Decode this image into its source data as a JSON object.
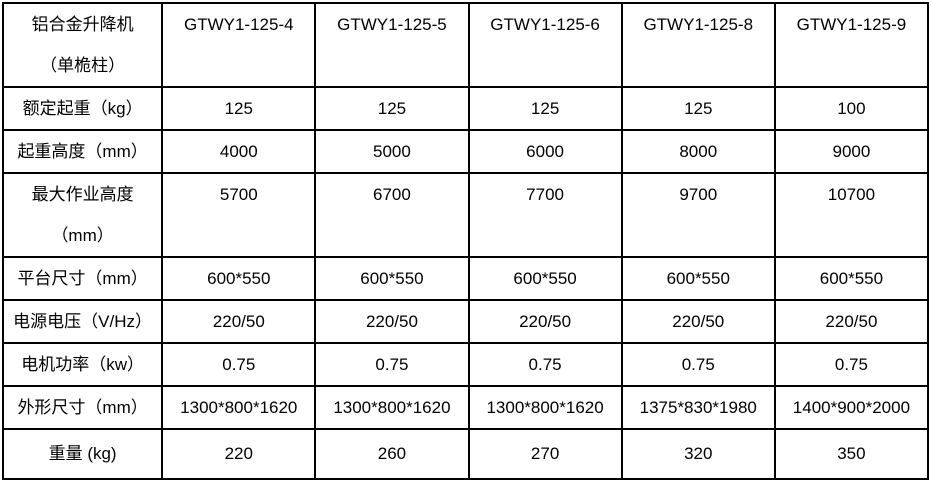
{
  "table": {
    "header": {
      "label_line1": "铝合金升降机",
      "label_line2": "（单桅柱）",
      "models": [
        "GTWY1-125-4",
        "GTWY1-125-5",
        "GTWY1-125-6",
        "GTWY1-125-8",
        "GTWY1-125-9"
      ]
    },
    "rows": [
      {
        "label": "额定起重（kg）",
        "values": [
          "125",
          "125",
          "125",
          "125",
          "100"
        ]
      },
      {
        "label": "起重高度（mm）",
        "values": [
          "4000",
          "5000",
          "6000",
          "8000",
          "9000"
        ]
      },
      {
        "label_line1": "最大作业高度",
        "label_line2": "（mm）",
        "values": [
          "5700",
          "6700",
          "7700",
          "9700",
          "10700"
        ]
      },
      {
        "label": "平台尺寸（mm）",
        "values": [
          "600*550",
          "600*550",
          "600*550",
          "600*550",
          "600*550"
        ]
      },
      {
        "label": "电源电压（V/Hz）",
        "values": [
          "220/50",
          "220/50",
          "220/50",
          "220/50",
          "220/50"
        ]
      },
      {
        "label": "电机功率（kw）",
        "values": [
          "0.75",
          "0.75",
          "0.75",
          "0.75",
          "0.75"
        ]
      },
      {
        "label": "外形尺寸（mm）",
        "values": [
          "1300*800*1620",
          "1300*800*1620",
          "1300*800*1620",
          "1375*830*1980",
          "1400*900*2000"
        ]
      },
      {
        "label": "重量 (kg)",
        "values": [
          "220",
          "260",
          "270",
          "320",
          "350"
        ]
      }
    ],
    "colors": {
      "border": "#000000",
      "text": "#000000",
      "background": "#ffffff"
    }
  }
}
